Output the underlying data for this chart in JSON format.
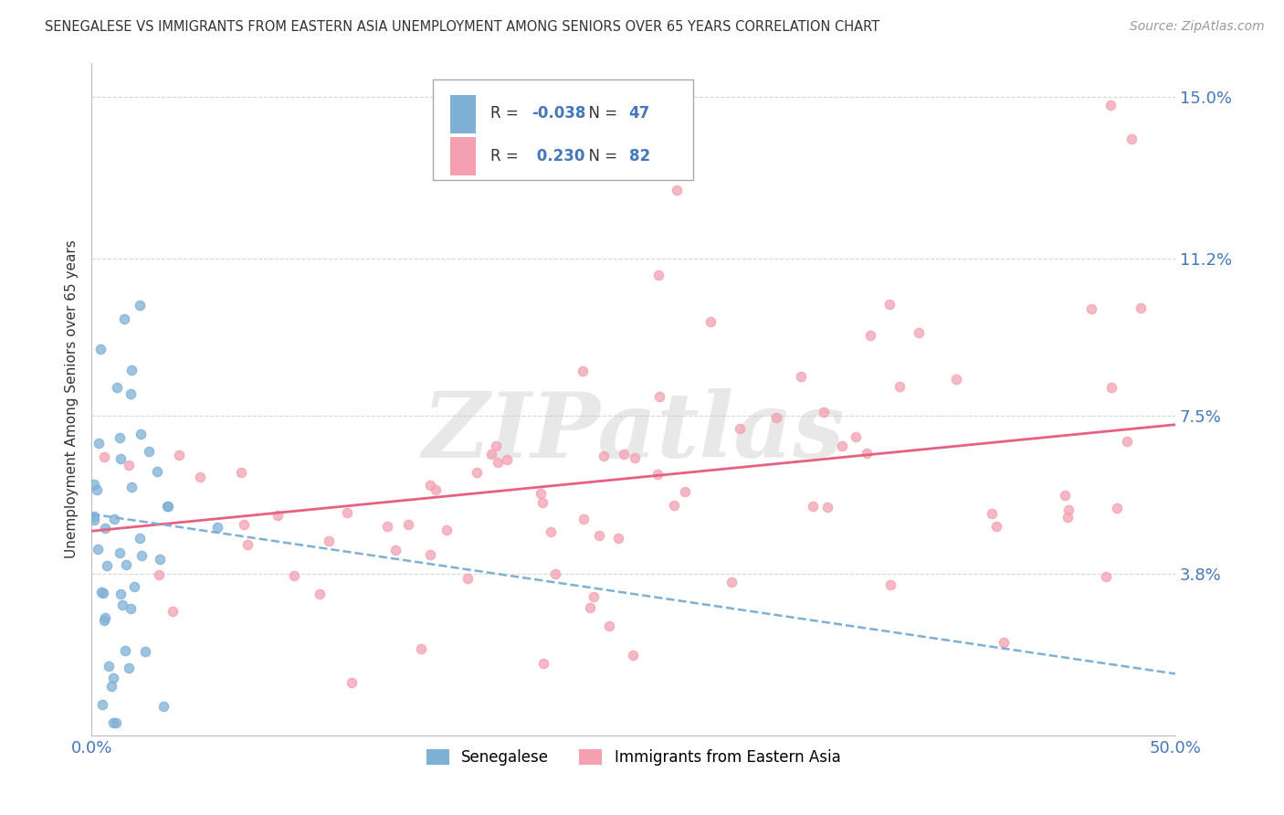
{
  "title": "SENEGALESE VS IMMIGRANTS FROM EASTERN ASIA UNEMPLOYMENT AMONG SENIORS OVER 65 YEARS CORRELATION CHART",
  "source": "Source: ZipAtlas.com",
  "ylabel": "Unemployment Among Seniors over 65 years",
  "xlim": [
    0.0,
    0.5
  ],
  "ylim": [
    0.0,
    0.158
  ],
  "yticks": [
    0.038,
    0.075,
    0.112,
    0.15
  ],
  "ytick_labels": [
    "3.8%",
    "7.5%",
    "11.2%",
    "15.0%"
  ],
  "xtick_vals": [
    0.0,
    0.05,
    0.1,
    0.15,
    0.2,
    0.25,
    0.3,
    0.35,
    0.4,
    0.45,
    0.5
  ],
  "xtick_labels": [
    "0.0%",
    "",
    "",
    "",
    "",
    "",
    "",
    "",
    "",
    "",
    "50.0%"
  ],
  "legend_labels": [
    "Senegalese",
    "Immigrants from Eastern Asia"
  ],
  "senegalese_R": "-0.038",
  "senegalese_N": "47",
  "eastern_asia_R": "0.230",
  "eastern_asia_N": "82",
  "blue_color": "#7EB0D5",
  "pink_color": "#F4A0B0",
  "blue_line_color": "#7EB0D5",
  "pink_line_color": "#E86080",
  "grid_color": "#CCCCCC",
  "title_color": "#333333",
  "tick_color": "#4477BB",
  "background_color": "#FFFFFF",
  "watermark_text": "ZIPatlas",
  "watermark_color": "#E8E8E8"
}
